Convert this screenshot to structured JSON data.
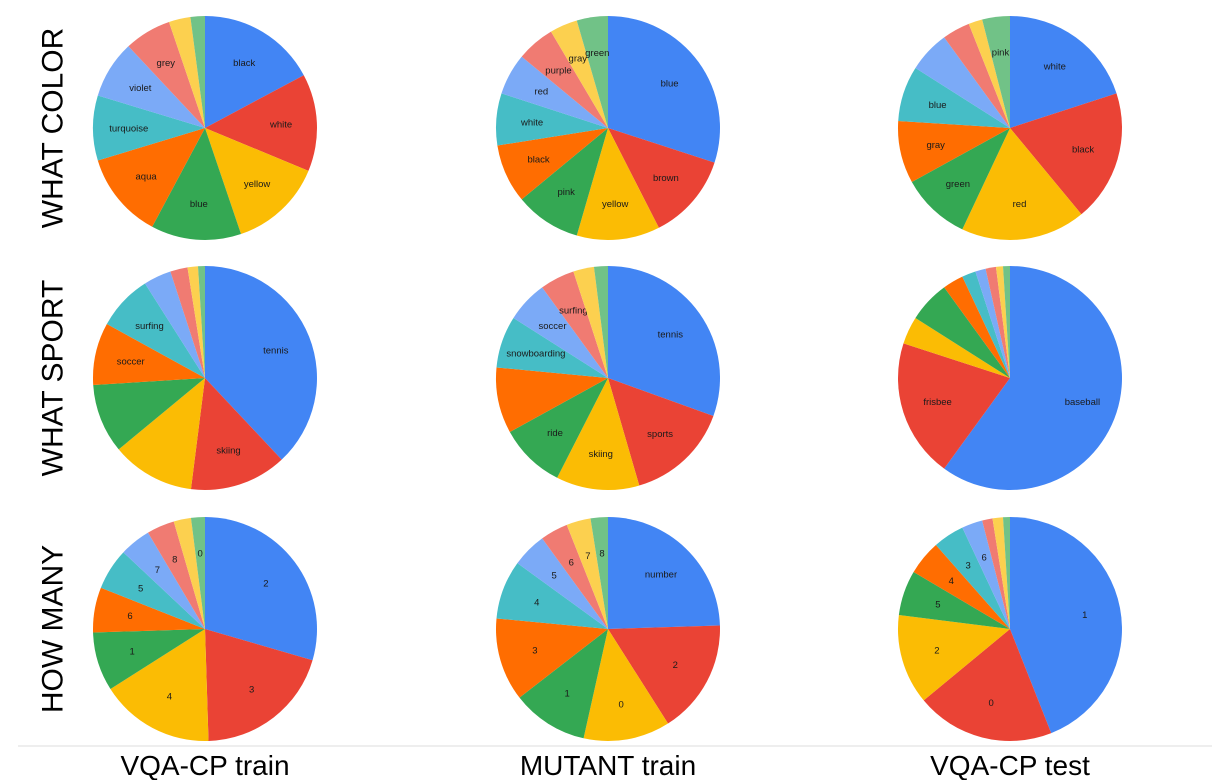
{
  "colors": [
    "#4285f4",
    "#ea4335",
    "#fbbc04",
    "#34a853",
    "#ff6d01",
    "#46bdc6",
    "#7baaf7",
    "#f07b72",
    "#fcd04f",
    "#71c287"
  ],
  "row_labels": [
    "WHAT COLOR",
    "WHAT SPORT",
    "HOW MANY"
  ],
  "column_labels": [
    "VQA-CP train",
    "MUTANT train",
    "VQA-CP test"
  ],
  "chart_data": [
    {
      "type": "pie",
      "question": "WHAT COLOR",
      "dataset": "VQA-CP train",
      "slices": [
        {
          "label": "black",
          "value": 16.5
        },
        {
          "label": "white",
          "value": 13.5
        },
        {
          "label": "yellow",
          "value": 13
        },
        {
          "label": "blue",
          "value": 12.5
        },
        {
          "label": "aqua",
          "value": 12
        },
        {
          "label": "turquoise",
          "value": 9
        },
        {
          "label": "violet",
          "value": 8
        },
        {
          "label": "grey",
          "value": 6.5
        },
        {
          "label": "",
          "value": 3
        },
        {
          "label": "",
          "value": 2
        }
      ]
    },
    {
      "type": "pie",
      "question": "WHAT COLOR",
      "dataset": "MUTANT train",
      "slices": [
        {
          "label": "blue",
          "value": 30
        },
        {
          "label": "brown",
          "value": 12.5
        },
        {
          "label": "yellow",
          "value": 12
        },
        {
          "label": "pink",
          "value": 9.5
        },
        {
          "label": "black",
          "value": 8.5
        },
        {
          "label": "white",
          "value": 7.5
        },
        {
          "label": "red",
          "value": 6
        },
        {
          "label": "purple",
          "value": 5.5
        },
        {
          "label": "gray",
          "value": 4
        },
        {
          "label": "green",
          "value": 4.5
        }
      ]
    },
    {
      "type": "pie",
      "question": "WHAT COLOR",
      "dataset": "VQA-CP test",
      "slices": [
        {
          "label": "white",
          "value": 20
        },
        {
          "label": "black",
          "value": 19
        },
        {
          "label": "red",
          "value": 18
        },
        {
          "label": "green",
          "value": 10
        },
        {
          "label": "gray",
          "value": 9
        },
        {
          "label": "blue",
          "value": 8
        },
        {
          "label": "",
          "value": 6
        },
        {
          "label": "",
          "value": 4
        },
        {
          "label": "",
          "value": 2
        },
        {
          "label": "pink",
          "value": 4
        }
      ]
    },
    {
      "type": "pie",
      "question": "WHAT SPORT",
      "dataset": "VQA-CP train",
      "slices": [
        {
          "label": "tennis",
          "value": 38
        },
        {
          "label": "skiing",
          "value": 14
        },
        {
          "label": "",
          "value": 12
        },
        {
          "label": "",
          "value": 10
        },
        {
          "label": "soccer",
          "value": 9
        },
        {
          "label": "surfing",
          "value": 8
        },
        {
          "label": "",
          "value": 4
        },
        {
          "label": "",
          "value": 2.5
        },
        {
          "label": "",
          "value": 1.5
        },
        {
          "label": "",
          "value": 1
        }
      ]
    },
    {
      "type": "pie",
      "question": "WHAT SPORT",
      "dataset": "MUTANT train",
      "slices": [
        {
          "label": "tennis",
          "value": 30.5
        },
        {
          "label": "sports",
          "value": 15
        },
        {
          "label": "skiing",
          "value": 12
        },
        {
          "label": "ride",
          "value": 9.5
        },
        {
          "label": "",
          "value": 9.5
        },
        {
          "label": "snowboarding",
          "value": 7.5
        },
        {
          "label": "soccer",
          "value": 6
        },
        {
          "label": "surfing",
          "value": 5
        },
        {
          "label": "",
          "value": 3
        },
        {
          "label": "",
          "value": 2
        }
      ]
    },
    {
      "type": "pie",
      "question": "WHAT SPORT",
      "dataset": "VQA-CP test",
      "slices": [
        {
          "label": "baseball",
          "value": 60
        },
        {
          "label": "frisbee",
          "value": 20
        },
        {
          "label": "",
          "value": 4
        },
        {
          "label": "",
          "value": 6
        },
        {
          "label": "",
          "value": 3
        },
        {
          "label": "",
          "value": 2
        },
        {
          "label": "",
          "value": 1.5
        },
        {
          "label": "",
          "value": 1.5
        },
        {
          "label": "",
          "value": 1
        },
        {
          "label": "",
          "value": 1
        }
      ]
    },
    {
      "type": "pie",
      "question": "HOW MANY",
      "dataset": "VQA-CP train",
      "slices": [
        {
          "label": "2",
          "value": 29.5
        },
        {
          "label": "3",
          "value": 20
        },
        {
          "label": "4",
          "value": 16.5
        },
        {
          "label": "1",
          "value": 8.5
        },
        {
          "label": "6",
          "value": 6.5
        },
        {
          "label": "5",
          "value": 6
        },
        {
          "label": "7",
          "value": 4.5
        },
        {
          "label": "8",
          "value": 4
        },
        {
          "label": "",
          "value": 2.5
        },
        {
          "label": "0",
          "value": 2
        }
      ]
    },
    {
      "type": "pie",
      "question": "HOW MANY",
      "dataset": "MUTANT train",
      "slices": [
        {
          "label": "number",
          "value": 24.5
        },
        {
          "label": "2",
          "value": 16.5
        },
        {
          "label": "0",
          "value": 12.5
        },
        {
          "label": "1",
          "value": 11
        },
        {
          "label": "3",
          "value": 12
        },
        {
          "label": "4",
          "value": 8.5
        },
        {
          "label": "5",
          "value": 5
        },
        {
          "label": "6",
          "value": 4
        },
        {
          "label": "7",
          "value": 3.5
        },
        {
          "label": "8",
          "value": 2.5
        }
      ]
    },
    {
      "type": "pie",
      "question": "HOW MANY",
      "dataset": "VQA-CP test",
      "slices": [
        {
          "label": "1",
          "value": 44
        },
        {
          "label": "0",
          "value": 20
        },
        {
          "label": "2",
          "value": 13
        },
        {
          "label": "5",
          "value": 6.5
        },
        {
          "label": "4",
          "value": 5
        },
        {
          "label": "3",
          "value": 4.5
        },
        {
          "label": "6",
          "value": 3
        },
        {
          "label": "",
          "value": 1.5
        },
        {
          "label": "",
          "value": 1.5
        },
        {
          "label": "",
          "value": 1
        }
      ]
    }
  ]
}
